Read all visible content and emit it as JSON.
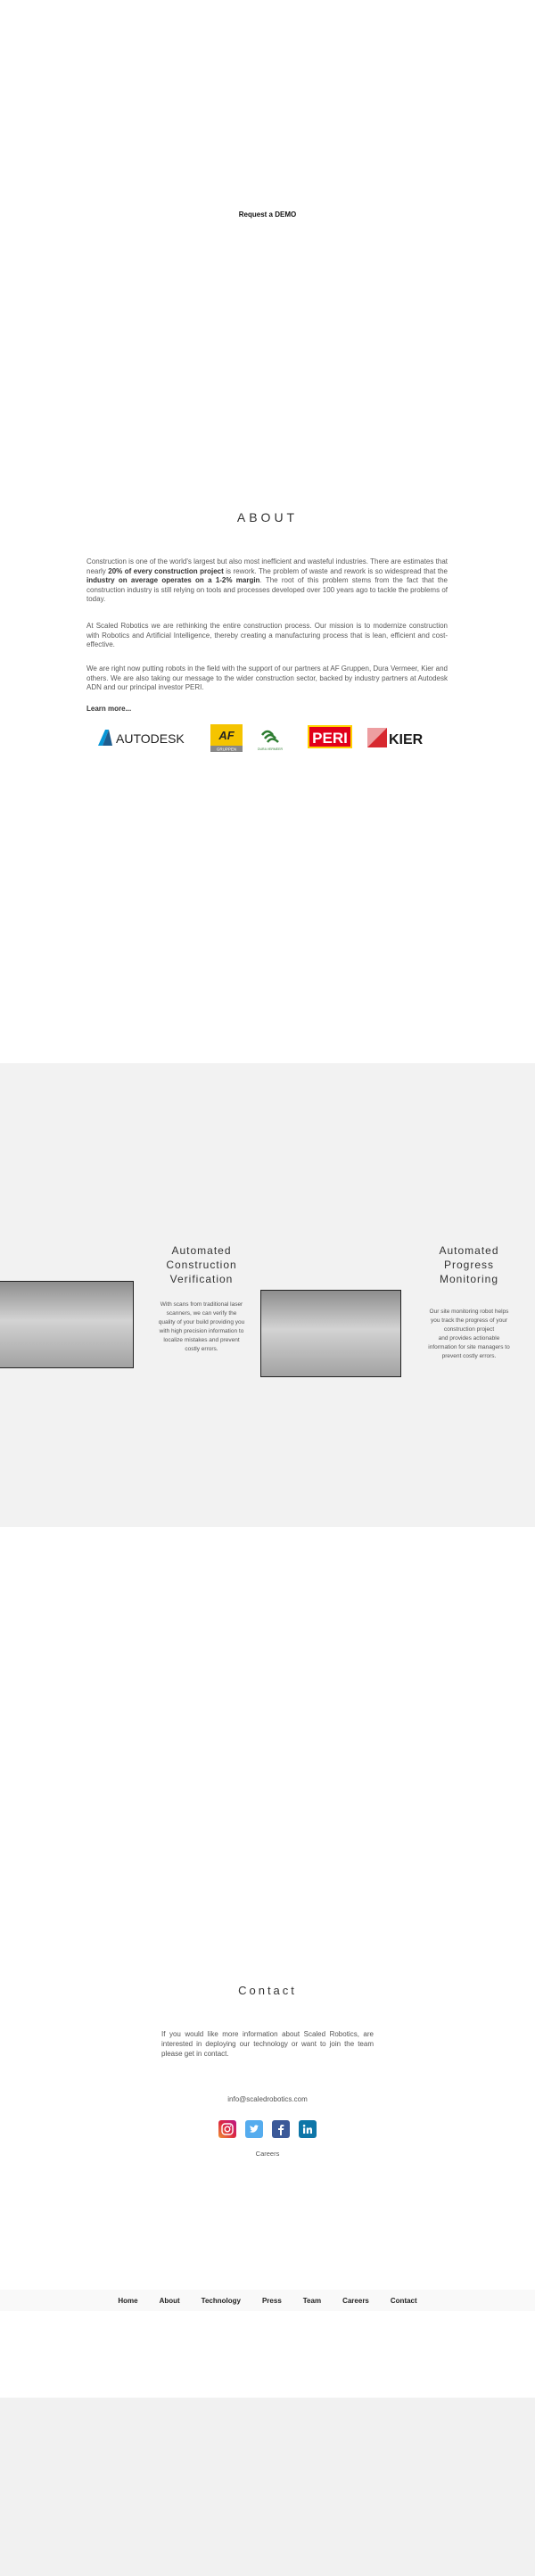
{
  "hero": {
    "demo_label": "Request a DEMO"
  },
  "about": {
    "title": "ABOUT",
    "p1": {
      "a": "Construction is one of the world's largest but also most inefficient and wasteful industries. There are estimates that nearly ",
      "b": "20% of every construction project",
      "c": " is rework. The problem of waste and rework is so widespread that the ",
      "d": "industry on average operates on a 1-2% margin",
      "e": ". The root of this problem stems from the fact that the construction industry is still relying on tools and processes developed over 100 years ago to tackle the problems of today."
    },
    "p2": "At Scaled Robotics we are rethinking the entire construction process. Our mission is to modernize construction with Robotics and Artificial Intelligence, thereby creating a manufacturing process that is lean, efficient and cost-effective.",
    "p3": "We are right now putting robots in the field with the support of our partners at AF Gruppen, Dura Vermeer, Kier and others. We are also taking our message to the wider construction sector, backed by industry partners at Autodesk ADN and our principal investor PERI.",
    "learn_more": "Learn more...",
    "logos": {
      "autodesk": "AUTODESK",
      "af": "AF",
      "af_sub": "GRUPPEN",
      "dura": "DURA VERMEER",
      "peri": "PERI",
      "kier": "KIER"
    }
  },
  "features": [
    {
      "title_lines": [
        "Automated",
        "Construction",
        "Verification"
      ],
      "body_lines": [
        "With scans from traditional laser",
        "scanners, we can verify the",
        "quality of your build providing you",
        "with high precision information to",
        "localize mistakes and prevent",
        "costly errors."
      ]
    },
    {
      "title_lines": [
        "Automated",
        "Progress",
        "Monitoring"
      ],
      "body_lines": [
        "Our site monitoring robot helps",
        "you track the progress of your",
        "construction project",
        "and provides actionable",
        "information for site managers to",
        "prevent costly errors."
      ]
    }
  ],
  "contact": {
    "title": "Contact",
    "text": "If you would like more information about Scaled Robotics, are interested in deploying our technology or want to join the team please get in contact.",
    "email": "info@scaledrobotics.com",
    "careers": "Careers",
    "social_colors": {
      "instagram": "#c13584",
      "twitter": "#55acee",
      "facebook": "#3b5998",
      "linkedin": "#0e76a8"
    }
  },
  "nav": [
    "Home",
    "About",
    "Technology",
    "Press",
    "Team",
    "Careers",
    "Contact"
  ],
  "colors": {
    "band": "#f2f2f2",
    "peri_red": "#e2001a",
    "peri_yellow": "#ffd200",
    "af_yellow": "#f5c400",
    "kier_red": "#d7282f",
    "autodesk_teal": "#0696d7"
  }
}
